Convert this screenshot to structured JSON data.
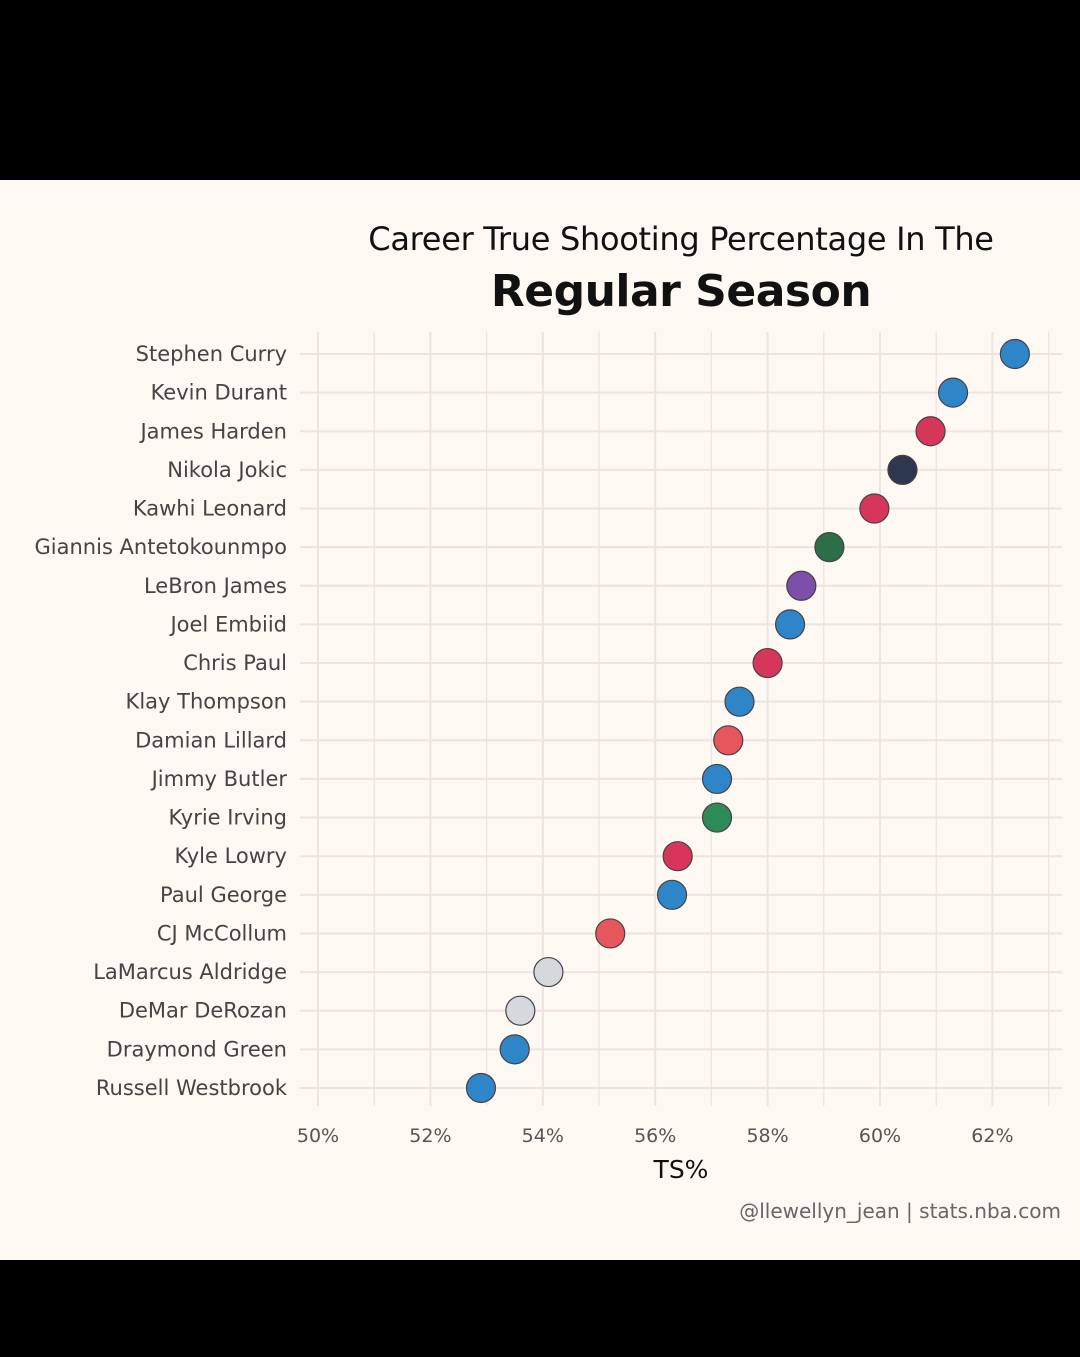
{
  "chart_data": {
    "type": "scatter",
    "title_line1": "Career True Shooting Percentage In The",
    "title_line2": "Regular Season",
    "xlabel": "TS%",
    "ylabel": "",
    "xlim": [
      50,
      63
    ],
    "xticks": [
      "50%",
      "52%",
      "54%",
      "56%",
      "58%",
      "60%",
      "62%"
    ],
    "grid": true,
    "credit": "@llewellyn_jean | stats.nba.com",
    "points": [
      {
        "player": "Stephen Curry",
        "ts": 62.4,
        "color": "#2e86c8"
      },
      {
        "player": "Kevin Durant",
        "ts": 61.3,
        "color": "#2e86c8"
      },
      {
        "player": "James Harden",
        "ts": 60.9,
        "color": "#d6365a"
      },
      {
        "player": "Nikola Jokic",
        "ts": 60.4,
        "color": "#2c3850"
      },
      {
        "player": "Kawhi Leonard",
        "ts": 59.9,
        "color": "#d6365a"
      },
      {
        "player": "Giannis Antetokounmpo",
        "ts": 59.1,
        "color": "#2b6e48"
      },
      {
        "player": "LeBron James",
        "ts": 58.6,
        "color": "#7d4fa8"
      },
      {
        "player": "Joel Embiid",
        "ts": 58.4,
        "color": "#2e86c8"
      },
      {
        "player": "Chris Paul",
        "ts": 58.0,
        "color": "#d6365a"
      },
      {
        "player": "Klay Thompson",
        "ts": 57.5,
        "color": "#2e86c8"
      },
      {
        "player": "Damian Lillard",
        "ts": 57.3,
        "color": "#e5575d"
      },
      {
        "player": "Jimmy Butler",
        "ts": 57.1,
        "color": "#2e86c8"
      },
      {
        "player": "Kyrie Irving",
        "ts": 57.1,
        "color": "#2e8b57"
      },
      {
        "player": "Kyle Lowry",
        "ts": 56.4,
        "color": "#d6365a"
      },
      {
        "player": "Paul George",
        "ts": 56.3,
        "color": "#2e86c8"
      },
      {
        "player": "CJ McCollum",
        "ts": 55.2,
        "color": "#e5575d"
      },
      {
        "player": "LaMarcus Aldridge",
        "ts": 54.1,
        "color": "#d5d8dc"
      },
      {
        "player": "DeMar DeRozan",
        "ts": 53.6,
        "color": "#d5d8dc"
      },
      {
        "player": "Draymond Green",
        "ts": 53.5,
        "color": "#2e86c8"
      },
      {
        "player": "Russell Westbrook",
        "ts": 52.9,
        "color": "#2e86c8"
      }
    ]
  }
}
